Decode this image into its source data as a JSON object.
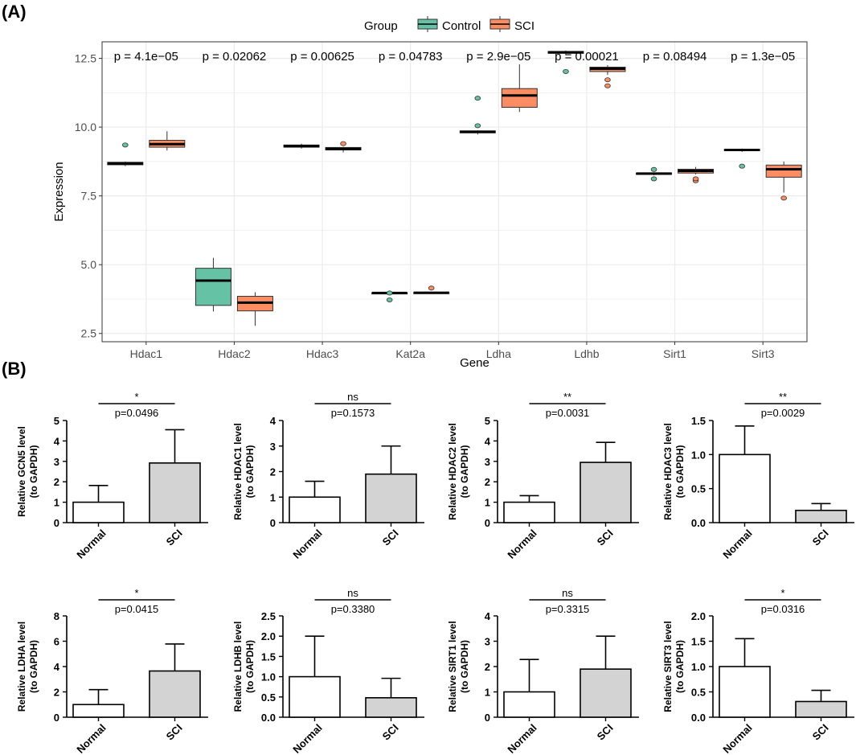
{
  "panel_labels": {
    "a": "(A)",
    "b": "(B)"
  },
  "colors": {
    "control": "#66c2a5",
    "sci": "#fc8d62",
    "grid": "#ebebeb",
    "bar_sci": "#d3d3d3",
    "bar_normal": "#ffffff"
  },
  "chart_data": [
    {
      "type": "box",
      "title": "",
      "xlabel": "Gene",
      "ylabel": "Expression",
      "ylim": [
        2.2,
        13.1
      ],
      "yticks": [
        "2.5",
        "5.0",
        "7.5",
        "10.0",
        "12.5"
      ],
      "legend": {
        "title": "Group",
        "position": "top",
        "entries": [
          "Control",
          "SCI"
        ]
      },
      "categories": [
        "Hdac1",
        "Hdac2",
        "Hdac3",
        "Kat2a",
        "Ldha",
        "Ldhb",
        "Sirt1",
        "Sirt3"
      ],
      "pvalues": [
        "p = 4.1e−05",
        "p = 0.02062",
        "p = 0.00625",
        "p = 0.04783",
        "p = 2.9e−05",
        "p = 0.00021",
        "p = 0.08494",
        "p = 1.3e−05"
      ],
      "series": [
        {
          "name": "Control",
          "boxes": [
            {
              "min": 8.58,
              "q1": 8.63,
              "median": 8.68,
              "q3": 8.72,
              "max": 8.75,
              "outliers": [
                9.35
              ]
            },
            {
              "min": 3.3,
              "q1": 3.52,
              "median": 4.42,
              "q3": 4.87,
              "max": 5.25,
              "outliers": []
            },
            {
              "min": 9.22,
              "q1": 9.27,
              "median": 9.31,
              "q3": 9.35,
              "max": 9.4,
              "outliers": []
            },
            {
              "min": 3.93,
              "q1": 3.95,
              "median": 3.97,
              "q3": 3.98,
              "max": 3.99,
              "outliers": [
                3.72,
                3.97
              ]
            },
            {
              "min": 9.73,
              "q1": 9.79,
              "median": 9.83,
              "q3": 9.86,
              "max": 9.88,
              "outliers": [
                10.05,
                11.05
              ]
            },
            {
              "min": 12.62,
              "q1": 12.68,
              "median": 12.72,
              "q3": 12.75,
              "max": 12.78,
              "outliers": [
                12.02
              ]
            },
            {
              "min": 8.25,
              "q1": 8.28,
              "median": 8.31,
              "q3": 8.33,
              "max": 8.35,
              "outliers": [
                8.12,
                8.46
              ]
            },
            {
              "min": 9.1,
              "q1": 9.14,
              "median": 9.17,
              "q3": 9.19,
              "max": 9.22,
              "outliers": [
                8.58
              ]
            }
          ]
        },
        {
          "name": "SCI",
          "boxes": [
            {
              "min": 9.15,
              "q1": 9.27,
              "median": 9.38,
              "q3": 9.52,
              "max": 9.85,
              "outliers": []
            },
            {
              "min": 2.78,
              "q1": 3.32,
              "median": 3.62,
              "q3": 3.85,
              "max": 4.0,
              "outliers": []
            },
            {
              "min": 9.08,
              "q1": 9.17,
              "median": 9.21,
              "q3": 9.26,
              "max": 9.28,
              "outliers": [
                9.4
              ]
            },
            {
              "min": 3.96,
              "q1": 3.97,
              "median": 3.98,
              "q3": 3.99,
              "max": 4.0,
              "outliers": [
                4.15
              ]
            },
            {
              "min": 10.55,
              "q1": 10.72,
              "median": 11.15,
              "q3": 11.4,
              "max": 12.28,
              "outliers": []
            },
            {
              "min": 11.9,
              "q1": 12.02,
              "median": 12.12,
              "q3": 12.18,
              "max": 12.25,
              "outliers": [
                11.5,
                11.72
              ]
            },
            {
              "min": 8.28,
              "q1": 8.33,
              "median": 8.41,
              "q3": 8.47,
              "max": 8.55,
              "outliers": [
                8.05,
                8.12
              ]
            },
            {
              "min": 7.62,
              "q1": 8.18,
              "median": 8.47,
              "q3": 8.62,
              "max": 8.75,
              "outliers": [
                7.42
              ]
            }
          ]
        }
      ]
    },
    {
      "type": "bar",
      "ylabel": [
        "Relative GCN5 level",
        "(to GAPDH)"
      ],
      "categories": [
        "Normal",
        "SCI"
      ],
      "values": [
        1.0,
        2.92
      ],
      "errors": [
        0.82,
        1.63
      ],
      "ylim": [
        0,
        5
      ],
      "yticks": [
        "0",
        "1",
        "2",
        "3",
        "4",
        "5"
      ],
      "significance": "*",
      "pvalue": "p=0.0496"
    },
    {
      "type": "bar",
      "ylabel": [
        "Relative HDAC1 level",
        "(to GAPDH)"
      ],
      "categories": [
        "Normal",
        "SCI"
      ],
      "values": [
        1.0,
        1.9
      ],
      "errors": [
        0.62,
        1.1
      ],
      "ylim": [
        0,
        4
      ],
      "yticks": [
        "0",
        "1",
        "2",
        "3",
        "4"
      ],
      "significance": "ns",
      "pvalue": "p=0.1573"
    },
    {
      "type": "bar",
      "ylabel": [
        "Relative HDAC2 level",
        "(to GAPDH)"
      ],
      "categories": [
        "Normal",
        "SCI"
      ],
      "values": [
        1.0,
        2.95
      ],
      "errors": [
        0.32,
        0.98
      ],
      "ylim": [
        0,
        5
      ],
      "yticks": [
        "0",
        "1",
        "2",
        "3",
        "4",
        "5"
      ],
      "significance": "**",
      "pvalue": "p=0.0031"
    },
    {
      "type": "bar",
      "ylabel": [
        "Relative HDAC3 level",
        "(to GAPDH)"
      ],
      "categories": [
        "Normal",
        "SCI"
      ],
      "values": [
        1.0,
        0.18
      ],
      "errors": [
        0.42,
        0.1
      ],
      "ylim": [
        0,
        1.5
      ],
      "yticks": [
        "0.0",
        "0.5",
        "1.0",
        "1.5"
      ],
      "significance": "**",
      "pvalue": "p=0.0029"
    },
    {
      "type": "bar",
      "ylabel": [
        "Relative LDHA level",
        "(to GAPDH)"
      ],
      "categories": [
        "Normal",
        "SCI"
      ],
      "values": [
        1.0,
        3.65
      ],
      "errors": [
        1.18,
        2.13
      ],
      "ylim": [
        0,
        8
      ],
      "yticks": [
        "0",
        "2",
        "4",
        "6",
        "8"
      ],
      "significance": "*",
      "pvalue": "p=0.0415"
    },
    {
      "type": "bar",
      "ylabel": [
        "Relative LDHB level",
        "(to GAPDH)"
      ],
      "categories": [
        "Normal",
        "SCI"
      ],
      "values": [
        1.0,
        0.48
      ],
      "errors": [
        1.0,
        0.48
      ],
      "ylim": [
        0,
        2.5
      ],
      "yticks": [
        "0.0",
        "0.5",
        "1.0",
        "1.5",
        "2.0",
        "2.5"
      ],
      "significance": "ns",
      "pvalue": "p=0.3380"
    },
    {
      "type": "bar",
      "ylabel": [
        "Relative SIRT1 level",
        "(to GAPDH)"
      ],
      "categories": [
        "Normal",
        "SCI"
      ],
      "values": [
        1.0,
        1.9
      ],
      "errors": [
        1.28,
        1.3
      ],
      "ylim": [
        0,
        4
      ],
      "yticks": [
        "0",
        "1",
        "2",
        "3",
        "4"
      ],
      "significance": "ns",
      "pvalue": "p=0.3315"
    },
    {
      "type": "bar",
      "ylabel": [
        "Relative SIRT3 level",
        "(to GAPDH)"
      ],
      "categories": [
        "Normal",
        "SCI"
      ],
      "values": [
        1.0,
        0.31
      ],
      "errors": [
        0.55,
        0.22
      ],
      "ylim": [
        0,
        2.0
      ],
      "yticks": [
        "0.0",
        "0.5",
        "1.0",
        "1.5",
        "2.0"
      ],
      "significance": "*",
      "pvalue": "p=0.0316"
    }
  ]
}
